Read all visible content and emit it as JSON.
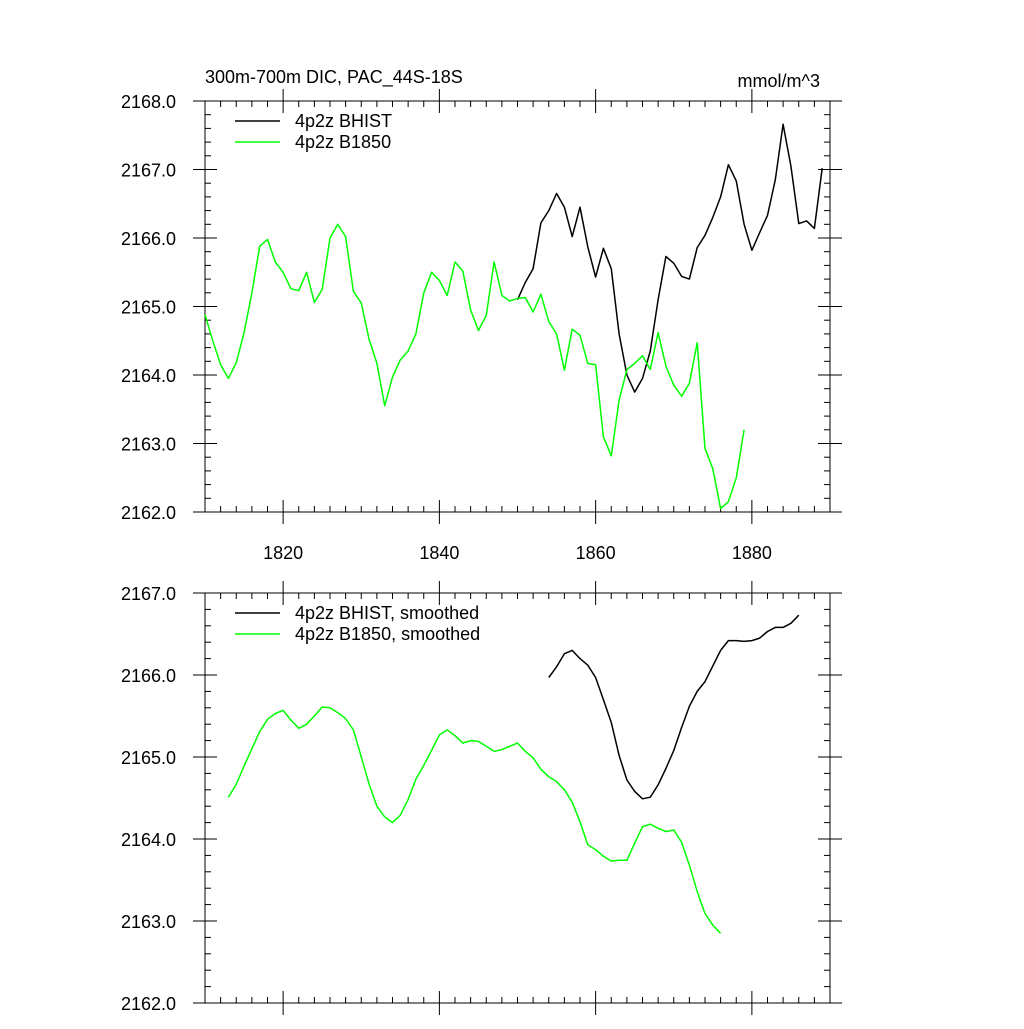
{
  "chart_data": [
    {
      "type": "line",
      "title": "300m-700m DIC, PAC_44S-18S",
      "units": "mmol/m^3",
      "xlim": [
        1810,
        1890
      ],
      "ylim": [
        2162.0,
        2168.0
      ],
      "x_ticks": [
        1820,
        1840,
        1860,
        1880
      ],
      "x_tick_labels": [
        "1820",
        "1840",
        "1860",
        "1880"
      ],
      "y_ticks": [
        2162.0,
        2163.0,
        2164.0,
        2165.0,
        2166.0,
        2167.0,
        2168.0
      ],
      "y_tick_labels": [
        "2162.0",
        "2163.0",
        "2164.0",
        "2165.0",
        "2166.0",
        "2167.0",
        "2168.0"
      ],
      "grid": false,
      "legend_position": "top-left",
      "series": [
        {
          "name": "4p2z BHIST",
          "color": "#000000",
          "x": [
            1850,
            1851,
            1852,
            1853,
            1854,
            1855,
            1856,
            1857,
            1858,
            1859,
            1860,
            1861,
            1862,
            1863,
            1864,
            1865,
            1866,
            1867,
            1868,
            1869,
            1870,
            1871,
            1872,
            1873,
            1874,
            1875,
            1876,
            1877,
            1878,
            1879,
            1880,
            1881,
            1882,
            1883,
            1884,
            1885,
            1886,
            1887,
            1888,
            1889
          ],
          "y": [
            2165.1,
            2165.35,
            2165.55,
            2166.22,
            2166.4,
            2166.65,
            2166.45,
            2166.02,
            2166.45,
            2165.87,
            2165.43,
            2165.85,
            2165.55,
            2164.6,
            2164.0,
            2163.75,
            2163.95,
            2164.35,
            2165.1,
            2165.73,
            2165.63,
            2165.44,
            2165.4,
            2165.86,
            2166.04,
            2166.3,
            2166.6,
            2167.07,
            2166.83,
            2166.2,
            2165.82,
            2166.08,
            2166.33,
            2166.85,
            2167.66,
            2167.05,
            2166.21,
            2166.25,
            2166.14,
            2167.02
          ]
        },
        {
          "name": "4p2z B1850",
          "color": "#00ff00",
          "x": [
            1810,
            1811,
            1812,
            1813,
            1814,
            1815,
            1816,
            1817,
            1818,
            1819,
            1820,
            1821,
            1822,
            1823,
            1824,
            1825,
            1826,
            1827,
            1828,
            1829,
            1830,
            1831,
            1832,
            1833,
            1834,
            1835,
            1836,
            1837,
            1838,
            1839,
            1840,
            1841,
            1842,
            1843,
            1844,
            1845,
            1846,
            1847,
            1848,
            1849,
            1850,
            1851,
            1852,
            1853,
            1854,
            1855,
            1856,
            1857,
            1858,
            1859,
            1860,
            1861,
            1862,
            1863,
            1864,
            1865,
            1866,
            1867,
            1868,
            1869,
            1870,
            1871,
            1872,
            1873,
            1874,
            1875,
            1876,
            1877,
            1878,
            1879
          ],
          "y": [
            2164.88,
            2164.5,
            2164.15,
            2163.95,
            2164.18,
            2164.62,
            2165.2,
            2165.88,
            2165.98,
            2165.65,
            2165.5,
            2165.26,
            2165.23,
            2165.5,
            2165.06,
            2165.25,
            2166.0,
            2166.2,
            2166.02,
            2165.22,
            2165.05,
            2164.52,
            2164.17,
            2163.55,
            2163.97,
            2164.22,
            2164.35,
            2164.6,
            2165.2,
            2165.5,
            2165.38,
            2165.16,
            2165.65,
            2165.52,
            2164.95,
            2164.65,
            2164.87,
            2165.65,
            2165.16,
            2165.08,
            2165.12,
            2165.13,
            2164.92,
            2165.18,
            2164.78,
            2164.6,
            2164.07,
            2164.67,
            2164.58,
            2164.17,
            2164.15,
            2163.1,
            2162.82,
            2163.63,
            2164.08,
            2164.17,
            2164.28,
            2164.08,
            2164.62,
            2164.13,
            2163.85,
            2163.69,
            2163.88,
            2164.47,
            2162.93,
            2162.63,
            2162.05,
            2162.15,
            2162.5,
            2163.2
          ]
        }
      ]
    },
    {
      "type": "line",
      "xlim": [
        1810,
        1890
      ],
      "ylim": [
        2162.0,
        2167.0
      ],
      "x_ticks": [
        1820,
        1840,
        1860,
        1880
      ],
      "x_tick_labels": [],
      "y_ticks": [
        2162.0,
        2163.0,
        2164.0,
        2165.0,
        2166.0,
        2167.0
      ],
      "y_tick_labels": [
        "2162.0",
        "2163.0",
        "2164.0",
        "2165.0",
        "2166.0",
        "2167.0"
      ],
      "grid": false,
      "legend_position": "top-left",
      "series": [
        {
          "name": "4p2z BHIST, smoothed",
          "color": "#000000",
          "x": [
            1854,
            1855,
            1856,
            1857,
            1858,
            1859,
            1860,
            1861,
            1862,
            1863,
            1864,
            1865,
            1866,
            1867,
            1868,
            1869,
            1870,
            1871,
            1872,
            1873,
            1874,
            1875,
            1876,
            1877,
            1878,
            1879,
            1880,
            1881,
            1882,
            1883,
            1884,
            1885,
            1886
          ],
          "y": [
            2165.97,
            2166.1,
            2166.26,
            2166.3,
            2166.2,
            2166.12,
            2165.97,
            2165.7,
            2165.42,
            2165.02,
            2164.72,
            2164.58,
            2164.49,
            2164.51,
            2164.66,
            2164.86,
            2165.08,
            2165.36,
            2165.62,
            2165.8,
            2165.92,
            2166.11,
            2166.3,
            2166.42,
            2166.42,
            2166.41,
            2166.42,
            2166.45,
            2166.53,
            2166.58,
            2166.58,
            2166.63,
            2166.73
          ]
        },
        {
          "name": "4p2z B1850, smoothed",
          "color": "#00ff00",
          "x": [
            1813,
            1814,
            1815,
            1816,
            1817,
            1818,
            1819,
            1820,
            1821,
            1822,
            1823,
            1824,
            1825,
            1826,
            1827,
            1828,
            1829,
            1830,
            1831,
            1832,
            1833,
            1834,
            1835,
            1836,
            1837,
            1838,
            1839,
            1840,
            1841,
            1842,
            1843,
            1844,
            1845,
            1846,
            1847,
            1848,
            1849,
            1850,
            1851,
            1852,
            1853,
            1854,
            1855,
            1856,
            1857,
            1858,
            1859,
            1860,
            1861,
            1862,
            1863,
            1864,
            1865,
            1866,
            1867,
            1868,
            1869,
            1870,
            1871,
            1872,
            1873,
            1874,
            1875,
            1876
          ],
          "y": [
            2164.51,
            2164.67,
            2164.89,
            2165.1,
            2165.31,
            2165.46,
            2165.53,
            2165.57,
            2165.45,
            2165.35,
            2165.4,
            2165.5,
            2165.61,
            2165.6,
            2165.54,
            2165.47,
            2165.33,
            2165.0,
            2164.67,
            2164.4,
            2164.27,
            2164.2,
            2164.29,
            2164.48,
            2164.73,
            2164.9,
            2165.08,
            2165.27,
            2165.33,
            2165.26,
            2165.17,
            2165.2,
            2165.19,
            2165.13,
            2165.07,
            2165.09,
            2165.13,
            2165.17,
            2165.07,
            2164.99,
            2164.85,
            2164.76,
            2164.7,
            2164.6,
            2164.45,
            2164.21,
            2163.93,
            2163.87,
            2163.79,
            2163.73,
            2163.74,
            2163.74,
            2163.95,
            2164.15,
            2164.18,
            2164.13,
            2164.09,
            2164.11,
            2163.96,
            2163.68,
            2163.36,
            2163.09,
            2162.95,
            2162.85
          ]
        }
      ]
    }
  ]
}
